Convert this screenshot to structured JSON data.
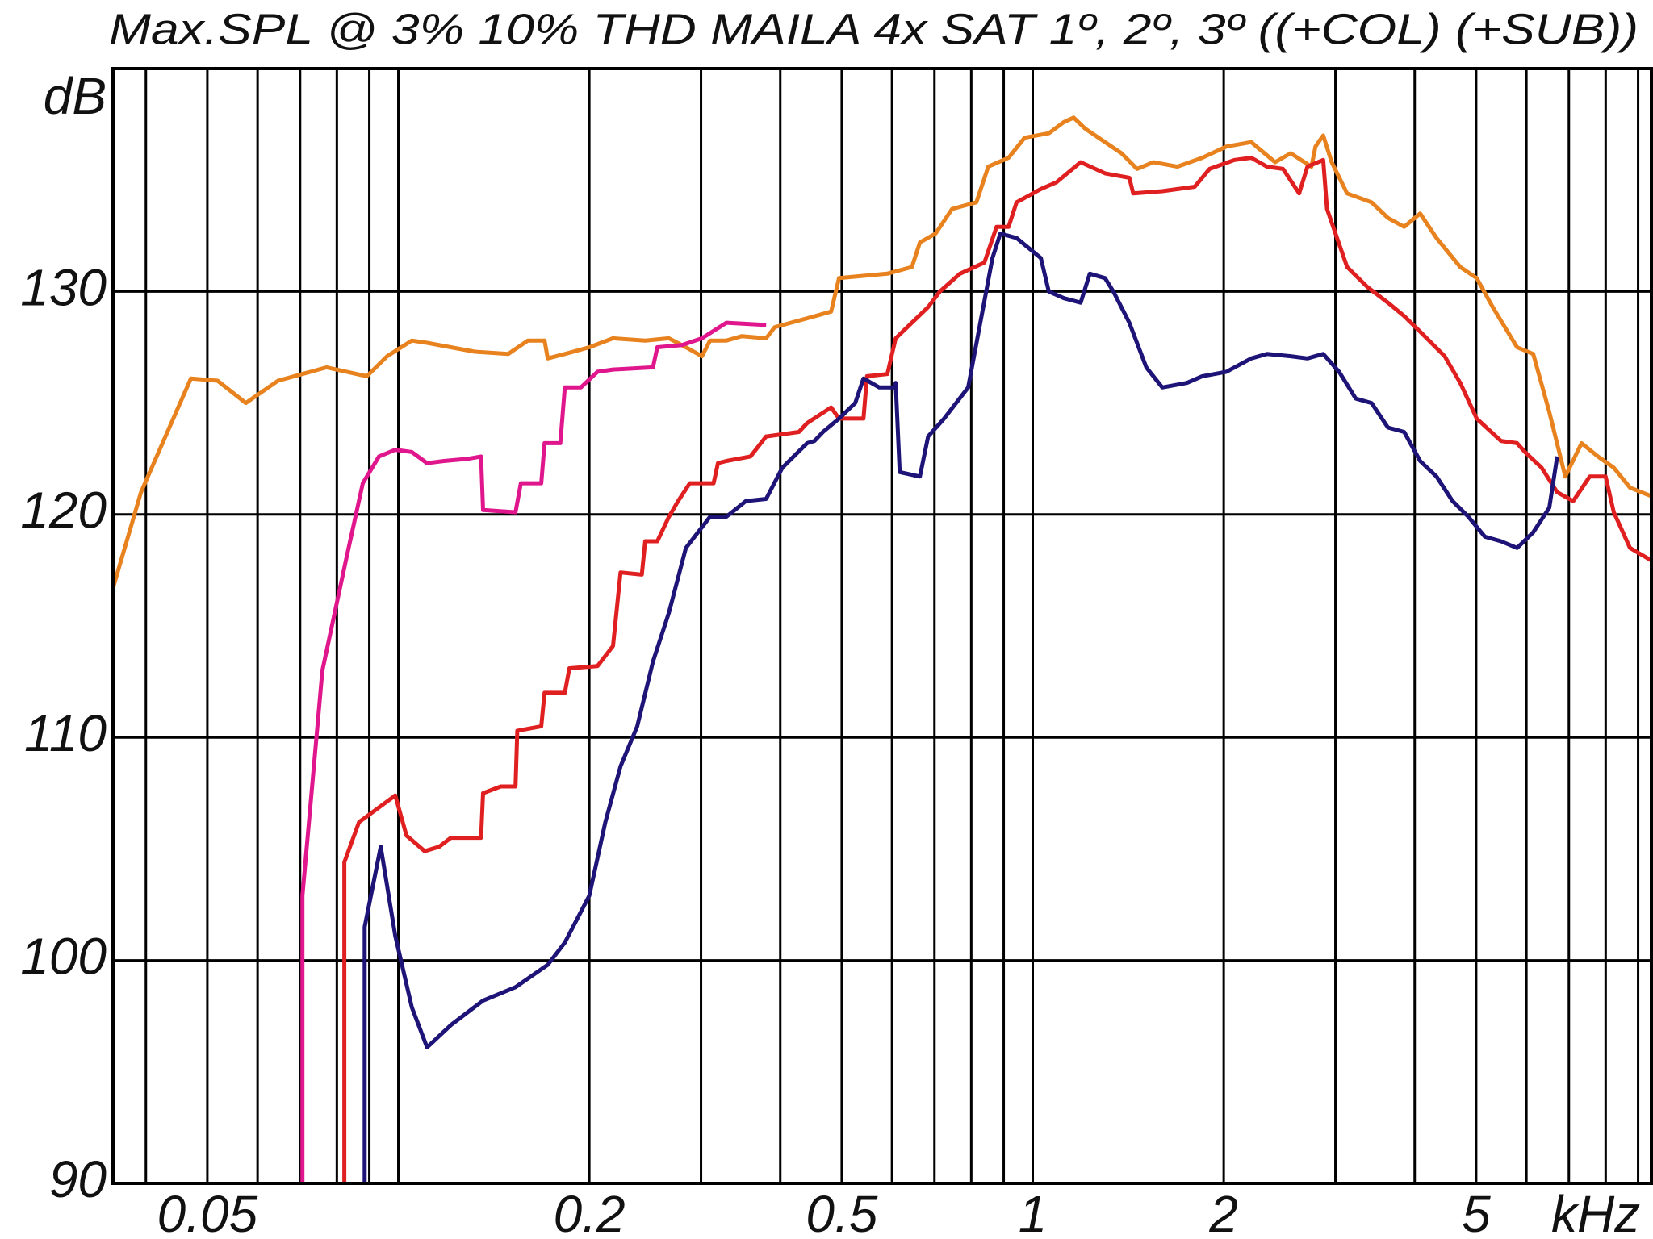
{
  "chart_data": {
    "type": "line",
    "title": "Max.SPL @ 3% 10% THD MAILA 4x SAT 1º, 2º, 3º ((+COL) (+SUB))",
    "x_unit": "kHz",
    "y_unit": "dB",
    "log_x": true,
    "grid": true,
    "xlim": [
      0.0355,
      9.5
    ],
    "ylim": [
      90,
      140
    ],
    "xticks": [
      0.05,
      0.2,
      0.5,
      1,
      2,
      5
    ],
    "xgrid": [
      0.04,
      0.05,
      0.06,
      0.07,
      0.08,
      0.09,
      0.1,
      0.2,
      0.3,
      0.4,
      0.5,
      0.6,
      0.7,
      0.8,
      0.9,
      1,
      2,
      3,
      4,
      5,
      6,
      7,
      8,
      9
    ],
    "yticks": [
      90,
      100,
      110,
      120,
      130
    ],
    "series": [
      {
        "color": "#e8821e",
        "x": [
          0.0355,
          0.0393,
          0.0471,
          0.0519,
          0.0575,
          0.0646,
          0.0771,
          0.0892,
          0.096,
          0.105,
          0.111,
          0.121,
          0.132,
          0.149,
          0.16,
          0.17,
          0.172,
          0.183,
          0.2,
          0.218,
          0.245,
          0.267,
          0.284,
          0.301,
          0.31,
          0.329,
          0.348,
          0.38,
          0.392,
          0.441,
          0.481,
          0.495,
          0.59,
          0.645,
          0.664,
          0.703,
          0.746,
          0.815,
          0.851,
          0.916,
          0.971,
          1.06,
          1.12,
          1.16,
          1.21,
          1.3,
          1.38,
          1.46,
          1.55,
          1.69,
          1.85,
          2.02,
          2.21,
          2.41,
          2.55,
          2.75,
          2.79,
          2.87,
          2.96,
          3.13,
          3.42,
          3.63,
          3.85,
          4.08,
          4.33,
          4.72,
          5.01,
          5.31,
          5.8,
          6.15,
          6.52,
          6.91,
          7.33,
          7.78,
          8.24,
          8.74,
          9.49
        ],
        "values": [
          116.7,
          121.0,
          126.1,
          126.0,
          125.0,
          126.0,
          126.6,
          126.2,
          127.1,
          127.8,
          127.7,
          127.5,
          127.3,
          127.2,
          127.8,
          127.8,
          127.0,
          127.2,
          127.5,
          127.9,
          127.8,
          127.9,
          127.5,
          127.1,
          127.8,
          127.8,
          128.0,
          127.9,
          128.4,
          128.8,
          129.1,
          130.6,
          130.8,
          131.1,
          132.2,
          132.6,
          133.7,
          134.0,
          135.6,
          136.0,
          136.9,
          137.1,
          137.6,
          137.8,
          137.3,
          136.7,
          136.2,
          135.5,
          135.8,
          135.6,
          136.0,
          136.5,
          136.7,
          135.8,
          136.2,
          135.6,
          136.5,
          137.0,
          135.8,
          134.4,
          134.0,
          133.3,
          132.9,
          133.5,
          132.4,
          131.1,
          130.6,
          129.3,
          127.5,
          127.2,
          124.6,
          121.7,
          123.2,
          122.6,
          122.1,
          121.2,
          120.8
        ]
      },
      {
        "color": "#e0168c",
        "x": [
          0.0706,
          0.0706,
          0.0759,
          0.0829,
          0.0879,
          0.0932,
          0.0989,
          0.105,
          0.111,
          0.118,
          0.129,
          0.135,
          0.136,
          0.153,
          0.156,
          0.168,
          0.17,
          0.18,
          0.183,
          0.194,
          0.206,
          0.218,
          0.252,
          0.256,
          0.28,
          0.301,
          0.329,
          0.38
        ],
        "values": [
          90,
          102.9,
          113.0,
          118.1,
          121.4,
          122.6,
          122.9,
          122.8,
          122.3,
          122.4,
          122.5,
          122.6,
          120.2,
          120.1,
          121.4,
          121.4,
          123.2,
          123.2,
          125.7,
          125.7,
          126.4,
          126.5,
          126.6,
          127.5,
          127.6,
          127.9,
          128.6,
          128.5
        ]
      },
      {
        "color": "#e02020",
        "x": [
          0.0822,
          0.0822,
          0.0867,
          0.0989,
          0.103,
          0.11,
          0.116,
          0.121,
          0.135,
          0.136,
          0.145,
          0.153,
          0.154,
          0.168,
          0.17,
          0.183,
          0.186,
          0.206,
          0.218,
          0.224,
          0.242,
          0.245,
          0.256,
          0.267,
          0.276,
          0.288,
          0.314,
          0.319,
          0.329,
          0.359,
          0.38,
          0.428,
          0.441,
          0.481,
          0.495,
          0.541,
          0.548,
          0.59,
          0.608,
          0.684,
          0.714,
          0.768,
          0.839,
          0.877,
          0.916,
          0.943,
          1.03,
          1.09,
          1.19,
          1.3,
          1.42,
          1.44,
          1.6,
          1.8,
          1.9,
          2.08,
          2.21,
          2.34,
          2.48,
          2.63,
          2.71,
          2.87,
          2.91,
          3.13,
          3.37,
          3.63,
          3.85,
          4.08,
          4.46,
          4.72,
          5.01,
          5.47,
          5.8,
          5.97,
          6.34,
          6.71,
          7.11,
          7.55,
          8.0,
          8.24,
          8.74,
          9.49
        ],
        "values": [
          90,
          104.4,
          106.2,
          107.4,
          105.6,
          104.9,
          105.1,
          105.5,
          105.5,
          107.5,
          107.8,
          107.8,
          110.3,
          110.5,
          112.0,
          112.0,
          113.1,
          113.2,
          114.1,
          117.4,
          117.3,
          118.8,
          118.8,
          119.9,
          120.6,
          121.4,
          121.4,
          122.3,
          122.4,
          122.6,
          123.5,
          123.7,
          124.1,
          124.8,
          124.3,
          124.3,
          126.2,
          126.3,
          127.9,
          129.3,
          130.0,
          130.8,
          131.3,
          132.9,
          132.9,
          134.0,
          134.6,
          134.9,
          135.8,
          135.3,
          135.1,
          134.4,
          134.5,
          134.7,
          135.5,
          135.9,
          136.0,
          135.6,
          135.5,
          134.4,
          135.6,
          135.9,
          133.7,
          131.1,
          130.2,
          129.5,
          128.9,
          128.2,
          127.1,
          125.9,
          124.3,
          123.3,
          123.2,
          122.8,
          122.1,
          121.0,
          120.6,
          121.7,
          121.7,
          120.1,
          118.5,
          117.9
        ]
      },
      {
        "color": "#1e1478",
        "x": [
          0.0885,
          0.0885,
          0.0938,
          0.0989,
          0.105,
          0.111,
          0.121,
          0.136,
          0.153,
          0.172,
          0.183,
          0.2,
          0.212,
          0.224,
          0.238,
          0.252,
          0.267,
          0.284,
          0.31,
          0.329,
          0.353,
          0.38,
          0.403,
          0.441,
          0.453,
          0.467,
          0.495,
          0.525,
          0.541,
          0.573,
          0.604,
          0.608,
          0.617,
          0.664,
          0.684,
          0.725,
          0.791,
          0.864,
          0.889,
          0.943,
          1.03,
          1.06,
          1.12,
          1.19,
          1.23,
          1.3,
          1.34,
          1.42,
          1.51,
          1.6,
          1.75,
          1.85,
          2.02,
          2.21,
          2.34,
          2.55,
          2.71,
          2.87,
          3.04,
          3.23,
          3.42,
          3.63,
          3.85,
          4.08,
          4.33,
          4.59,
          4.86,
          5.16,
          5.47,
          5.8,
          6.15,
          6.52,
          6.71
        ],
        "values": [
          90,
          101.5,
          105.1,
          101.1,
          97.9,
          96.1,
          97.1,
          98.2,
          98.8,
          99.8,
          100.8,
          102.9,
          106.2,
          108.7,
          110.5,
          113.4,
          115.6,
          118.5,
          119.9,
          119.9,
          120.6,
          120.7,
          122.1,
          123.2,
          123.3,
          123.7,
          124.3,
          125.0,
          126.1,
          125.7,
          125.7,
          125.9,
          121.9,
          121.7,
          123.5,
          124.3,
          125.7,
          131.5,
          132.6,
          132.4,
          131.5,
          130.0,
          129.7,
          129.5,
          130.8,
          130.6,
          130.0,
          128.6,
          126.6,
          125.7,
          125.9,
          126.2,
          126.4,
          127.0,
          127.2,
          127.1,
          127.0,
          127.2,
          126.4,
          125.2,
          125.0,
          123.9,
          123.7,
          122.4,
          121.7,
          120.6,
          119.9,
          119.0,
          118.8,
          118.5,
          119.2,
          120.3,
          122.6
        ]
      }
    ]
  }
}
